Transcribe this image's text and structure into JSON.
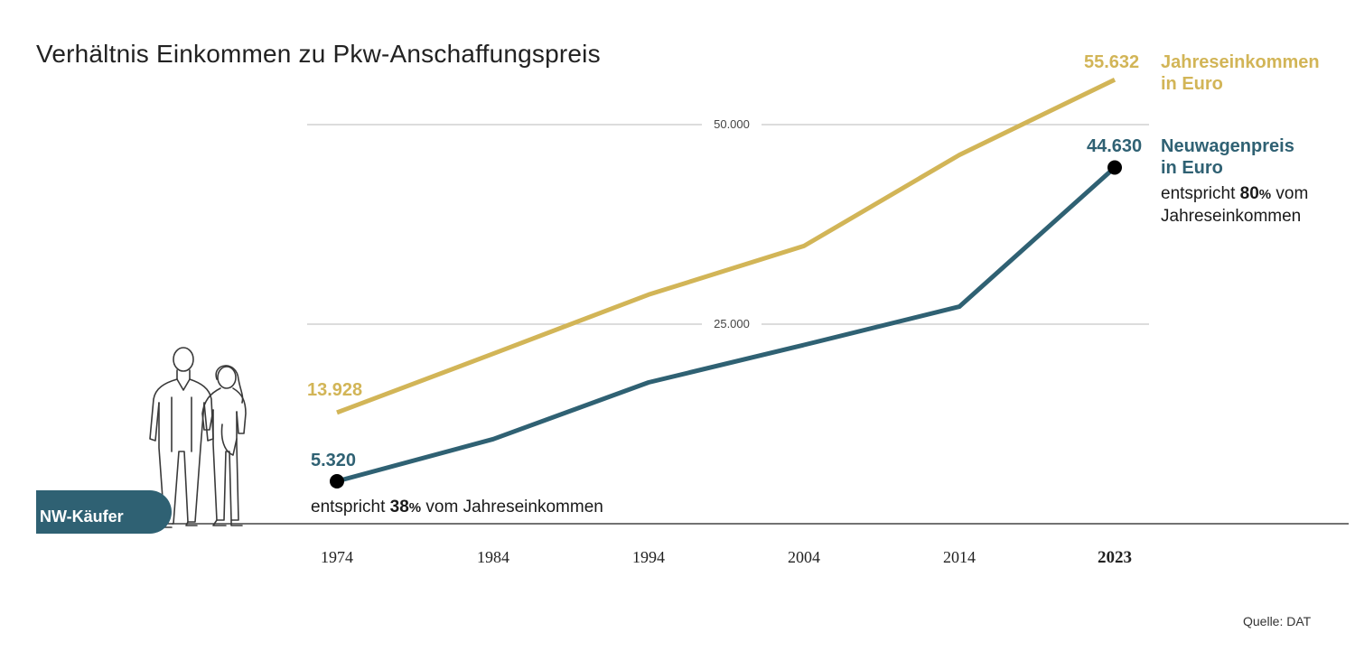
{
  "title": "Verhältnis Einkommen zu Pkw-Anschaffungspreis",
  "source": "Quelle: DAT",
  "badge": "NW-Käufer",
  "colors": {
    "income": "#d2b557",
    "car_price": "#2f6173",
    "grid": "#c8c8c8",
    "axis": "#444444"
  },
  "chart_data": {
    "type": "line",
    "x": [
      "1974",
      "1984",
      "1994",
      "2004",
      "2014",
      "2023"
    ],
    "x_emphasized": "2023",
    "ylim": [
      0,
      50000
    ],
    "yticks": [
      {
        "value": 25000,
        "label": "25.000"
      },
      {
        "value": 50000,
        "label": "50.000"
      }
    ],
    "series": [
      {
        "key": "income",
        "name": "Jahreseinkommen in Euro",
        "values": [
          13928,
          21300,
          28700,
          34800,
          46200,
          55632
        ],
        "start_label": "13.928",
        "end_label": "55.632",
        "legend_lines": [
          "Jahreseinkommen",
          "in Euro"
        ]
      },
      {
        "key": "car_price",
        "name": "Neuwagenpreis in Euro",
        "values": [
          5320,
          10600,
          17700,
          22400,
          27200,
          44630
        ],
        "start_label": "5.320",
        "end_label": "44.630",
        "legend_lines": [
          "Neuwagenpreis",
          "in Euro"
        ]
      }
    ],
    "annotations": {
      "start": {
        "prefix": "entspricht ",
        "pct": "38",
        "unit": "%",
        "suffix": " vom Jahreseinkommen"
      },
      "end": {
        "prefix": "entspricht ",
        "pct": "80",
        "unit": "%",
        "suffix": " vom",
        "line2": "Jahreseinkommen"
      }
    }
  },
  "illustration": {
    "icon": "couple-line-drawing-icon"
  }
}
